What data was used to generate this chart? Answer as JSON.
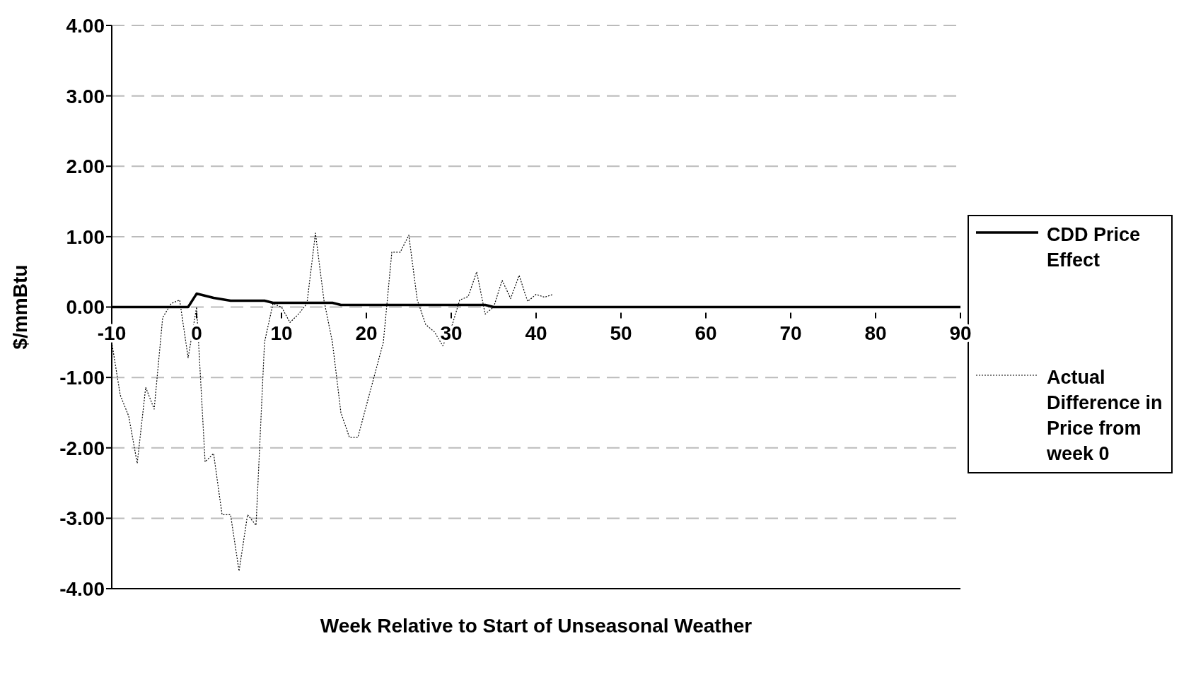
{
  "chart_data": {
    "type": "line",
    "xlabel": "Week Relative to Start of Unseasonal Weather",
    "ylabel": "$/mmBtu",
    "xlim": [
      -10,
      90
    ],
    "xticks": [
      -10,
      0,
      10,
      20,
      30,
      40,
      50,
      60,
      70,
      80,
      90
    ],
    "ylim": [
      -4,
      4
    ],
    "yticks": [
      {
        "value": -4,
        "label": "-4.00"
      },
      {
        "value": -3,
        "label": "-3.00"
      },
      {
        "value": -2,
        "label": "-2.00"
      },
      {
        "value": -1,
        "label": "-1.00"
      },
      {
        "value": 0,
        "label": "0.00"
      },
      {
        "value": 1,
        "label": "1.00"
      },
      {
        "value": 2,
        "label": "2.00"
      },
      {
        "value": 3,
        "label": "3.00"
      },
      {
        "value": 4,
        "label": "4.00"
      }
    ],
    "grid": "y",
    "legend": "right",
    "marker": "none",
    "series": [
      {
        "name": "CDD Price Effect",
        "color": "#000000",
        "line_style": "solid",
        "x": [
          -10,
          -1,
          0,
          1,
          2,
          3,
          4,
          8,
          9,
          16,
          17,
          34,
          35,
          90
        ],
        "values": [
          0,
          0,
          0.19,
          0.16,
          0.13,
          0.11,
          0.09,
          0.09,
          0.06,
          0.06,
          0.03,
          0.03,
          0,
          0
        ]
      },
      {
        "name": "Actual Difference in Price from week 0",
        "color": "#000000",
        "line_style": "dotted",
        "x": [
          -10,
          -9,
          -8,
          -7,
          -6,
          -5,
          -4,
          -3,
          -2,
          -1,
          0,
          1,
          2,
          3,
          4,
          5,
          6,
          7,
          8,
          9,
          10,
          11,
          12,
          13,
          14,
          15,
          16,
          17,
          18,
          19,
          20,
          21,
          22,
          23,
          24,
          25,
          26,
          27,
          28,
          29,
          30,
          31,
          32,
          33,
          34,
          35,
          36,
          37,
          38,
          39,
          40,
          41,
          42
        ],
        "values": [
          -0.5,
          -1.25,
          -1.55,
          -2.22,
          -1.14,
          -1.45,
          -0.15,
          0.05,
          0.1,
          -0.72,
          0,
          -2.2,
          -2.08,
          -2.95,
          -2.95,
          -3.75,
          -2.95,
          -3.1,
          -0.5,
          0.05,
          0,
          -0.22,
          -0.1,
          0.05,
          1.05,
          0.1,
          -0.5,
          -1.5,
          -1.85,
          -1.85,
          -1.4,
          -0.95,
          -0.5,
          0.78,
          0.78,
          1.02,
          0.1,
          -0.25,
          -0.35,
          -0.55,
          -0.3,
          0.1,
          0.15,
          0.5,
          -0.1,
          0,
          0.38,
          0.12,
          0.45,
          0.08,
          0.18,
          0.14,
          0.18
        ]
      }
    ]
  }
}
